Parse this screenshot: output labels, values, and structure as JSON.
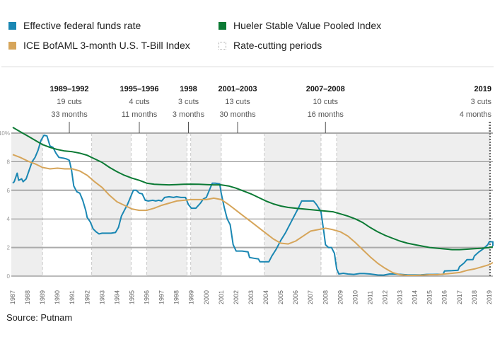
{
  "legend": [
    {
      "label": "Effective federal funds rate",
      "color": "#1a87b3",
      "style": "solid"
    },
    {
      "label": "Hueler Stable Value Pooled Index",
      "color": "#0b7a34",
      "style": "solid"
    },
    {
      "label": "ICE BofAML 3-month U.S. T-Bill Index",
      "color": "#d6a55a",
      "style": "solid"
    },
    {
      "label": "Rate-cutting periods",
      "color": "#ffffff",
      "style": "dotted"
    }
  ],
  "source": "Source: Putnam",
  "chart_data": {
    "type": "line",
    "title": "",
    "xlabel": "",
    "ylabel": "",
    "ylim": [
      0,
      10
    ],
    "xlim": [
      1987,
      2019.25
    ],
    "grid": true,
    "legend_position": "top",
    "y_ticks": [
      {
        "value": 0,
        "label": "0"
      },
      {
        "value": 2,
        "label": "2"
      },
      {
        "value": 4,
        "label": "4"
      },
      {
        "value": 6,
        "label": "6"
      },
      {
        "value": 8,
        "label": "8"
      },
      {
        "value": 10,
        "label": "10%"
      }
    ],
    "x_ticks": [
      "1987",
      "1988",
      "1989",
      "1990",
      "1991",
      "1992",
      "1993",
      "1994",
      "1995",
      "1996",
      "1997",
      "1998",
      "1999",
      "2000",
      "2001",
      "2002",
      "2003",
      "2004",
      "2005",
      "2006",
      "2007",
      "2008",
      "2009",
      "2010",
      "2011",
      "2012",
      "2013",
      "2014",
      "2015",
      "2016",
      "2017",
      "2018",
      "2019"
    ],
    "rate_cutting_periods": [
      {
        "label": "1989–1992",
        "cuts": "19 cuts",
        "months": "33 months",
        "start": 1989.0,
        "end": 1992.3,
        "marker": 1990.8
      },
      {
        "label": "1995–1996",
        "cuts": "4 cuts",
        "months": "11 months",
        "start": 1994.95,
        "end": 1996.0,
        "marker": 1995.5
      },
      {
        "label": "1998",
        "cuts": "3 cuts",
        "months": "3 months",
        "start": 1998.7,
        "end": 1998.95,
        "marker": 1998.8
      },
      {
        "label": "2001–2003",
        "cuts": "13 cuts",
        "months": "30 months",
        "start": 2001.0,
        "end": 2003.9,
        "marker": 2002.1
      },
      {
        "label": "2007–2008",
        "cuts": "10 cuts",
        "months": "16 months",
        "start": 2007.7,
        "end": 2008.75,
        "marker": 2008.0
      },
      {
        "label": "2019",
        "cuts": "3 cuts",
        "months": "4 months",
        "start": 2019.0,
        "end": 2019.25,
        "marker": 2019.0,
        "align": "right"
      }
    ],
    "series": [
      {
        "name": "Effective federal funds rate",
        "color": "#1a87b3",
        "points": [
          [
            1987.0,
            6.5
          ],
          [
            1987.1,
            6.6
          ],
          [
            1987.3,
            7.2
          ],
          [
            1987.4,
            6.7
          ],
          [
            1987.6,
            6.8
          ],
          [
            1987.7,
            6.6
          ],
          [
            1987.9,
            6.8
          ],
          [
            1988.1,
            7.4
          ],
          [
            1988.3,
            8.0
          ],
          [
            1988.5,
            8.3
          ],
          [
            1988.7,
            8.8
          ],
          [
            1988.9,
            9.5
          ],
          [
            1989.1,
            9.85
          ],
          [
            1989.3,
            9.8
          ],
          [
            1989.5,
            9.1
          ],
          [
            1989.7,
            9.0
          ],
          [
            1989.9,
            8.6
          ],
          [
            1990.1,
            8.3
          ],
          [
            1990.4,
            8.25
          ],
          [
            1990.6,
            8.2
          ],
          [
            1990.8,
            8.1
          ],
          [
            1990.95,
            7.4
          ],
          [
            1991.1,
            6.3
          ],
          [
            1991.3,
            5.9
          ],
          [
            1991.5,
            5.8
          ],
          [
            1991.7,
            5.3
          ],
          [
            1991.9,
            4.6
          ],
          [
            1992.0,
            4.1
          ],
          [
            1992.2,
            3.8
          ],
          [
            1992.4,
            3.3
          ],
          [
            1992.6,
            3.1
          ],
          [
            1992.8,
            2.95
          ],
          [
            1993.0,
            3.0
          ],
          [
            1993.3,
            3.0
          ],
          [
            1993.6,
            3.0
          ],
          [
            1993.9,
            3.05
          ],
          [
            1994.1,
            3.4
          ],
          [
            1994.3,
            4.2
          ],
          [
            1994.5,
            4.6
          ],
          [
            1994.7,
            5.0
          ],
          [
            1994.9,
            5.5
          ],
          [
            1995.1,
            6.0
          ],
          [
            1995.3,
            6.0
          ],
          [
            1995.5,
            5.8
          ],
          [
            1995.7,
            5.75
          ],
          [
            1995.9,
            5.3
          ],
          [
            1996.1,
            5.25
          ],
          [
            1996.4,
            5.3
          ],
          [
            1996.6,
            5.25
          ],
          [
            1996.8,
            5.3
          ],
          [
            1997.0,
            5.25
          ],
          [
            1997.2,
            5.5
          ],
          [
            1997.5,
            5.55
          ],
          [
            1997.8,
            5.5
          ],
          [
            1998.0,
            5.55
          ],
          [
            1998.3,
            5.5
          ],
          [
            1998.6,
            5.5
          ],
          [
            1998.8,
            5.0
          ],
          [
            1999.0,
            4.75
          ],
          [
            1999.3,
            4.75
          ],
          [
            1999.6,
            5.1
          ],
          [
            1999.8,
            5.4
          ],
          [
            2000.0,
            5.5
          ],
          [
            2000.2,
            6.0
          ],
          [
            2000.4,
            6.5
          ],
          [
            2000.6,
            6.5
          ],
          [
            2000.9,
            6.45
          ],
          [
            2001.0,
            5.8
          ],
          [
            2001.2,
            4.8
          ],
          [
            2001.4,
            4.0
          ],
          [
            2001.6,
            3.6
          ],
          [
            2001.8,
            2.2
          ],
          [
            2002.0,
            1.75
          ],
          [
            2002.4,
            1.75
          ],
          [
            2002.8,
            1.7
          ],
          [
            2002.9,
            1.3
          ],
          [
            2003.2,
            1.25
          ],
          [
            2003.5,
            1.2
          ],
          [
            2003.6,
            1.0
          ],
          [
            2003.9,
            1.0
          ],
          [
            2004.2,
            1.0
          ],
          [
            2004.4,
            1.4
          ],
          [
            2004.7,
            1.9
          ],
          [
            2005.0,
            2.5
          ],
          [
            2005.3,
            3.0
          ],
          [
            2005.6,
            3.6
          ],
          [
            2005.9,
            4.2
          ],
          [
            2006.2,
            4.8
          ],
          [
            2006.4,
            5.25
          ],
          [
            2006.8,
            5.25
          ],
          [
            2007.2,
            5.25
          ],
          [
            2007.4,
            5.0
          ],
          [
            2007.7,
            4.5
          ],
          [
            2007.9,
            3.0
          ],
          [
            2008.0,
            2.2
          ],
          [
            2008.2,
            2.0
          ],
          [
            2008.4,
            2.0
          ],
          [
            2008.6,
            1.6
          ],
          [
            2008.75,
            0.5
          ],
          [
            2008.9,
            0.15
          ],
          [
            2009.2,
            0.2
          ],
          [
            2009.5,
            0.15
          ],
          [
            2009.9,
            0.12
          ],
          [
            2010.3,
            0.18
          ],
          [
            2010.6,
            0.18
          ],
          [
            2011.0,
            0.15
          ],
          [
            2011.5,
            0.08
          ],
          [
            2011.9,
            0.07
          ],
          [
            2012.3,
            0.15
          ],
          [
            2012.7,
            0.15
          ],
          [
            2013.1,
            0.12
          ],
          [
            2013.5,
            0.09
          ],
          [
            2013.9,
            0.08
          ],
          [
            2014.4,
            0.09
          ],
          [
            2014.8,
            0.12
          ],
          [
            2015.2,
            0.12
          ],
          [
            2015.9,
            0.13
          ],
          [
            2016.0,
            0.36
          ],
          [
            2016.5,
            0.38
          ],
          [
            2016.9,
            0.41
          ],
          [
            2017.0,
            0.66
          ],
          [
            2017.3,
            0.91
          ],
          [
            2017.5,
            1.15
          ],
          [
            2017.9,
            1.16
          ],
          [
            2018.0,
            1.41
          ],
          [
            2018.3,
            1.69
          ],
          [
            2018.6,
            1.91
          ],
          [
            2018.9,
            2.2
          ],
          [
            2019.0,
            2.4
          ],
          [
            2019.4,
            2.4
          ],
          [
            2019.55,
            2.35
          ],
          [
            2019.6,
            2.1
          ]
        ]
      },
      {
        "name": "Hueler Stable Value Pooled Index",
        "color": "#0b7a34",
        "points": [
          [
            1987.0,
            10.4
          ],
          [
            1987.5,
            10.1
          ],
          [
            1988.0,
            9.8
          ],
          [
            1988.5,
            9.5
          ],
          [
            1989.0,
            9.2
          ],
          [
            1989.5,
            9.0
          ],
          [
            1990.0,
            8.85
          ],
          [
            1990.5,
            8.75
          ],
          [
            1991.0,
            8.7
          ],
          [
            1991.5,
            8.6
          ],
          [
            1992.0,
            8.45
          ],
          [
            1992.5,
            8.2
          ],
          [
            1993.0,
            7.95
          ],
          [
            1993.5,
            7.6
          ],
          [
            1994.0,
            7.3
          ],
          [
            1994.5,
            7.05
          ],
          [
            1995.0,
            6.85
          ],
          [
            1995.5,
            6.7
          ],
          [
            1996.0,
            6.5
          ],
          [
            1996.5,
            6.42
          ],
          [
            1997.0,
            6.4
          ],
          [
            1997.5,
            6.38
          ],
          [
            1998.0,
            6.4
          ],
          [
            1998.5,
            6.42
          ],
          [
            1999.0,
            6.43
          ],
          [
            1999.5,
            6.42
          ],
          [
            2000.0,
            6.4
          ],
          [
            2000.5,
            6.38
          ],
          [
            2001.0,
            6.38
          ],
          [
            2001.5,
            6.3
          ],
          [
            2002.0,
            6.15
          ],
          [
            2002.5,
            5.95
          ],
          [
            2003.0,
            5.75
          ],
          [
            2003.5,
            5.5
          ],
          [
            2004.0,
            5.25
          ],
          [
            2004.5,
            5.05
          ],
          [
            2005.0,
            4.9
          ],
          [
            2005.5,
            4.8
          ],
          [
            2006.0,
            4.75
          ],
          [
            2006.5,
            4.7
          ],
          [
            2007.0,
            4.65
          ],
          [
            2007.5,
            4.6
          ],
          [
            2008.0,
            4.55
          ],
          [
            2008.5,
            4.5
          ],
          [
            2009.0,
            4.35
          ],
          [
            2009.5,
            4.2
          ],
          [
            2010.0,
            4.0
          ],
          [
            2010.5,
            3.75
          ],
          [
            2011.0,
            3.4
          ],
          [
            2011.5,
            3.1
          ],
          [
            2012.0,
            2.85
          ],
          [
            2012.5,
            2.65
          ],
          [
            2013.0,
            2.45
          ],
          [
            2013.5,
            2.3
          ],
          [
            2014.0,
            2.2
          ],
          [
            2014.5,
            2.1
          ],
          [
            2015.0,
            2.0
          ],
          [
            2015.5,
            1.95
          ],
          [
            2016.0,
            1.9
          ],
          [
            2016.5,
            1.85
          ],
          [
            2017.0,
            1.85
          ],
          [
            2017.5,
            1.88
          ],
          [
            2018.0,
            1.92
          ],
          [
            2018.5,
            1.95
          ],
          [
            2019.0,
            2.0
          ],
          [
            2019.6,
            2.05
          ]
        ]
      },
      {
        "name": "ICE BofAML 3-month U.S. T-Bill Index",
        "color": "#d6a55a",
        "points": [
          [
            1987.0,
            8.5
          ],
          [
            1987.5,
            8.3
          ],
          [
            1988.0,
            8.05
          ],
          [
            1988.5,
            7.85
          ],
          [
            1989.0,
            7.6
          ],
          [
            1989.5,
            7.5
          ],
          [
            1990.0,
            7.55
          ],
          [
            1990.5,
            7.5
          ],
          [
            1991.0,
            7.5
          ],
          [
            1991.5,
            7.35
          ],
          [
            1992.0,
            7.05
          ],
          [
            1992.5,
            6.6
          ],
          [
            1993.0,
            6.2
          ],
          [
            1993.5,
            5.65
          ],
          [
            1994.0,
            5.2
          ],
          [
            1994.5,
            4.95
          ],
          [
            1995.0,
            4.7
          ],
          [
            1995.5,
            4.6
          ],
          [
            1996.0,
            4.6
          ],
          [
            1996.5,
            4.75
          ],
          [
            1997.0,
            4.95
          ],
          [
            1997.5,
            5.1
          ],
          [
            1998.0,
            5.25
          ],
          [
            1998.5,
            5.3
          ],
          [
            1999.0,
            5.35
          ],
          [
            1999.5,
            5.35
          ],
          [
            2000.0,
            5.35
          ],
          [
            2000.5,
            5.45
          ],
          [
            2001.0,
            5.35
          ],
          [
            2001.5,
            5.0
          ],
          [
            2002.0,
            4.6
          ],
          [
            2002.5,
            4.2
          ],
          [
            2003.0,
            3.8
          ],
          [
            2003.5,
            3.4
          ],
          [
            2004.0,
            3.0
          ],
          [
            2004.5,
            2.6
          ],
          [
            2005.0,
            2.3
          ],
          [
            2005.5,
            2.25
          ],
          [
            2006.0,
            2.45
          ],
          [
            2006.5,
            2.8
          ],
          [
            2007.0,
            3.15
          ],
          [
            2007.5,
            3.25
          ],
          [
            2008.0,
            3.35
          ],
          [
            2008.5,
            3.25
          ],
          [
            2009.0,
            3.1
          ],
          [
            2009.5,
            2.8
          ],
          [
            2010.0,
            2.35
          ],
          [
            2010.5,
            1.85
          ],
          [
            2011.0,
            1.35
          ],
          [
            2011.5,
            0.9
          ],
          [
            2012.0,
            0.55
          ],
          [
            2012.5,
            0.25
          ],
          [
            2013.0,
            0.1
          ],
          [
            2013.5,
            0.05
          ],
          [
            2014.0,
            0.05
          ],
          [
            2014.5,
            0.07
          ],
          [
            2015.0,
            0.1
          ],
          [
            2015.5,
            0.1
          ],
          [
            2016.0,
            0.15
          ],
          [
            2016.5,
            0.2
          ],
          [
            2017.0,
            0.25
          ],
          [
            2017.5,
            0.4
          ],
          [
            2018.0,
            0.5
          ],
          [
            2018.5,
            0.65
          ],
          [
            2019.0,
            0.8
          ],
          [
            2019.6,
            0.95
          ]
        ]
      }
    ]
  }
}
